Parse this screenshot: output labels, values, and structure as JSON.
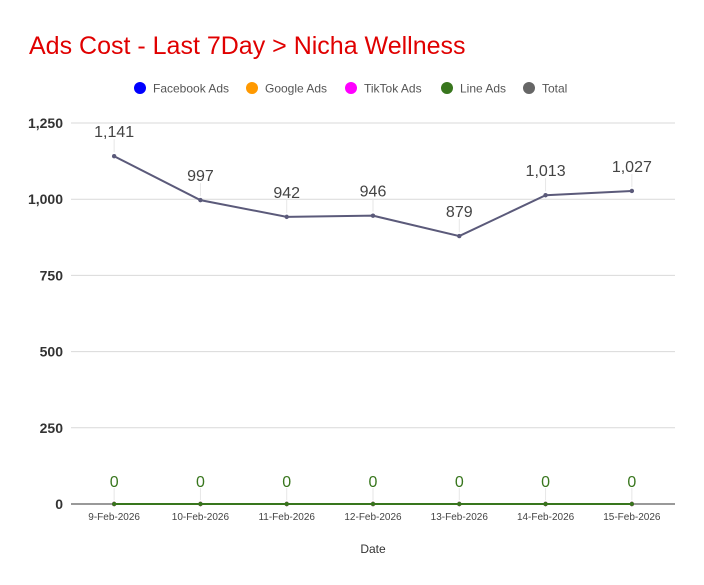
{
  "chart_data": {
    "type": "line",
    "title": "Ads Cost - Last 7Day > Nicha Wellness",
    "title_color": "#e00000",
    "xlabel": "Date",
    "ylabel": "",
    "ylim": [
      0,
      1250
    ],
    "yticks": [
      "0",
      "250",
      "500",
      "750",
      "1,000",
      "1,250"
    ],
    "ytick_values": [
      0,
      250,
      500,
      750,
      1000,
      1250
    ],
    "grid": true,
    "legend_position": "top",
    "categories": [
      "9-Feb-2026",
      "10-Feb-2026",
      "11-Feb-2026",
      "12-Feb-2026",
      "13-Feb-2026",
      "14-Feb-2026",
      "15-Feb-2026"
    ],
    "series": [
      {
        "name": "Facebook Ads",
        "color": "#0000ff",
        "values": [
          0,
          0,
          0,
          0,
          0,
          0,
          0
        ]
      },
      {
        "name": "Google Ads",
        "color": "#ff9900",
        "values": [
          0,
          0,
          0,
          0,
          0,
          0,
          0
        ]
      },
      {
        "name": "TikTok Ads",
        "color": "#ff00ff",
        "values": [
          0,
          0,
          0,
          0,
          0,
          0,
          0
        ]
      },
      {
        "name": "Line Ads",
        "color": "#38761d",
        "values": [
          0,
          0,
          0,
          0,
          0,
          0,
          0
        ],
        "data_labels": [
          "0",
          "0",
          "0",
          "0",
          "0",
          "0",
          "0"
        ]
      },
      {
        "name": "Total",
        "color": "#666666",
        "line_color": "#5b5a7a",
        "values": [
          1141,
          997,
          942,
          946,
          879,
          1013,
          1027
        ],
        "data_labels": [
          "1,141",
          "997",
          "942",
          "946",
          "879",
          "1,013",
          "1,027"
        ]
      }
    ]
  }
}
